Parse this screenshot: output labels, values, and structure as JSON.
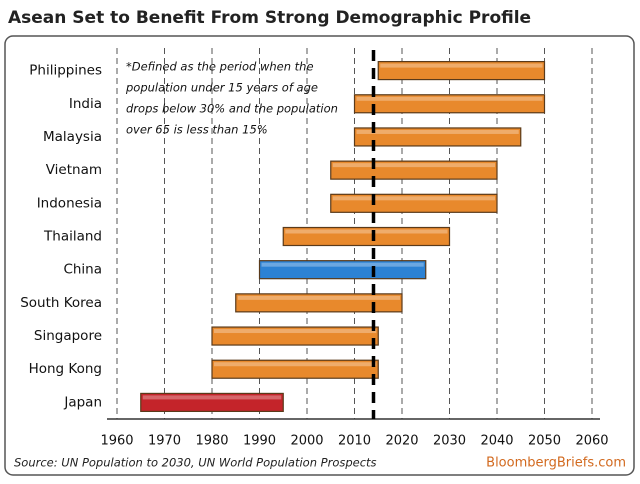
{
  "chart_data": {
    "type": "range_bar",
    "title": "Asean Set to Benefit From Strong Demographic Profile",
    "note": [
      "*Defined as the period when the",
      "population under 15 years of age",
      "drops below 30% and the population",
      "over 65 is less than 15%"
    ],
    "source": "Source: UN Population to 2030, UN World Population Prospects",
    "brand": "BloombergBriefs.com",
    "categories": [
      "Philippines",
      "India",
      "Malaysia",
      "Vietnam",
      "Indonesia",
      "Thailand",
      "China",
      "South Korea",
      "Singapore",
      "Hong Kong",
      "Japan"
    ],
    "start": [
      2015,
      2010,
      2010,
      2005,
      2005,
      1995,
      1990,
      1985,
      1980,
      1980,
      1965
    ],
    "end": [
      2050,
      2050,
      2045,
      2040,
      2040,
      2030,
      2025,
      2020,
      2015,
      2015,
      1995
    ],
    "colors": [
      "#e8892c",
      "#e8892c",
      "#e8892c",
      "#e8892c",
      "#e8892c",
      "#e8892c",
      "#2c82d4",
      "#e8892c",
      "#e8892c",
      "#e8892c",
      "#c4242a"
    ],
    "reference_line": 2014,
    "xlim": [
      1960,
      2060
    ],
    "xticks": [
      1960,
      1970,
      1980,
      1990,
      2000,
      2010,
      2020,
      2030,
      2040,
      2050,
      2060
    ],
    "grid": true
  }
}
